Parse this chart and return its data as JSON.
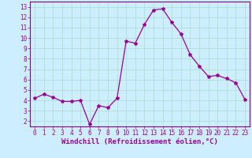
{
  "x": [
    0,
    1,
    2,
    3,
    4,
    5,
    6,
    7,
    8,
    9,
    10,
    11,
    12,
    13,
    14,
    15,
    16,
    17,
    18,
    19,
    20,
    21,
    22,
    23
  ],
  "y": [
    4.2,
    4.6,
    4.3,
    3.9,
    3.9,
    4.0,
    1.7,
    3.5,
    3.3,
    4.2,
    9.7,
    9.5,
    11.3,
    12.7,
    12.8,
    11.5,
    10.4,
    8.4,
    7.3,
    6.3,
    6.4,
    6.1,
    5.7,
    4.1
  ],
  "line_color": "#990099",
  "marker": "*",
  "marker_size": 3,
  "background_color": "#cceeff",
  "grid_color": "#aaddcc",
  "xlabel": "Windchill (Refroidissement éolien,°C)",
  "ylim": [
    1.5,
    13.5
  ],
  "xlim": [
    -0.5,
    23.5
  ],
  "yticks": [
    2,
    3,
    4,
    5,
    6,
    7,
    8,
    9,
    10,
    11,
    12,
    13
  ],
  "xticks": [
    0,
    1,
    2,
    3,
    4,
    5,
    6,
    7,
    8,
    9,
    10,
    11,
    12,
    13,
    14,
    15,
    16,
    17,
    18,
    19,
    20,
    21,
    22,
    23
  ],
  "tick_fontsize": 5.5,
  "xlabel_fontsize": 6.5,
  "spine_color": "#880088"
}
